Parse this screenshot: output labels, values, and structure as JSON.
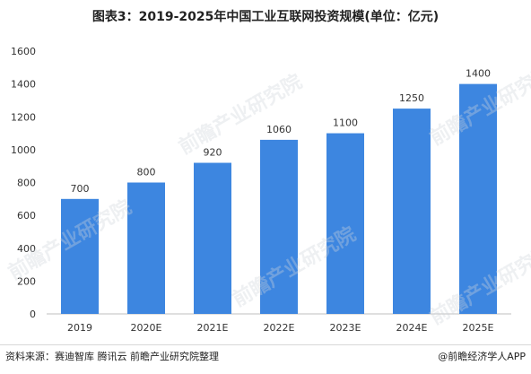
{
  "title": "图表3：2019-2025年中国工业互联网投资规模(单位：亿元)",
  "source": "资料来源：赛迪智库 腾讯云 前瞻产业研究院整理",
  "brand": "@前瞻经济学人APP",
  "watermark": "前瞻产业研究院",
  "colors": {
    "bar": "#3d86e0",
    "axis": "#bfbfbf",
    "text": "#333333"
  },
  "chart_data": {
    "type": "bar",
    "categories": [
      "2019",
      "2020E",
      "2021E",
      "2022E",
      "2023E",
      "2024E",
      "2025E"
    ],
    "values": [
      700,
      800,
      920,
      1060,
      1100,
      1250,
      1400
    ],
    "ylim": [
      0,
      1600
    ],
    "yticks": [
      0,
      200,
      400,
      600,
      800,
      1000,
      1200,
      1400,
      1600
    ],
    "grid": false,
    "data_labels": true
  }
}
